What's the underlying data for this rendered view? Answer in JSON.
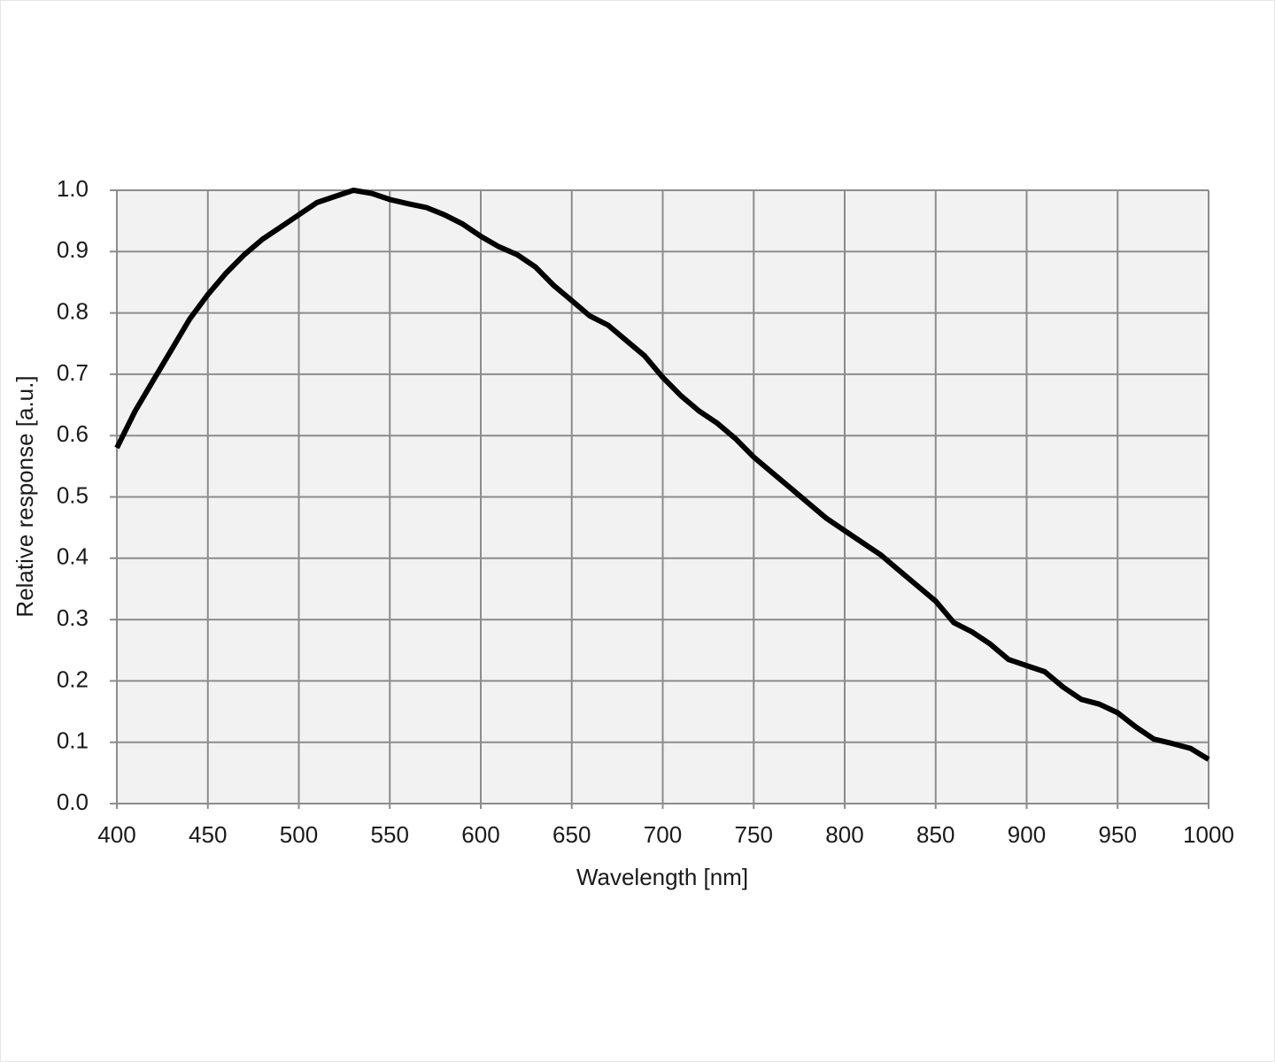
{
  "chart_data": {
    "type": "line",
    "xlabel": "Wavelength  [nm]",
    "ylabel": "Relative  response [a.u.]",
    "xlim": [
      400,
      1000
    ],
    "ylim": [
      0,
      1
    ],
    "xticks": [
      400,
      450,
      500,
      550,
      600,
      650,
      700,
      750,
      800,
      850,
      900,
      950,
      1000
    ],
    "yticks": [
      {
        "value": 0,
        "label": "0.0"
      },
      0.1,
      0.2,
      0.3,
      0.4,
      0.5,
      0.6,
      0.7,
      0.8,
      0.9,
      {
        "value": 1,
        "label": "1.0"
      }
    ],
    "grid": true,
    "x": [
      400,
      410,
      420,
      430,
      440,
      450,
      460,
      470,
      480,
      490,
      500,
      510,
      520,
      530,
      540,
      550,
      560,
      570,
      580,
      590,
      600,
      610,
      620,
      630,
      640,
      650,
      660,
      670,
      680,
      690,
      700,
      710,
      720,
      730,
      740,
      750,
      760,
      770,
      780,
      790,
      800,
      810,
      820,
      830,
      840,
      850,
      860,
      870,
      880,
      890,
      900,
      910,
      920,
      930,
      940,
      950,
      960,
      970,
      980,
      990,
      1000
    ],
    "series": [
      {
        "color": "#000000",
        "values": [
          0.58,
          0.64,
          0.69,
          0.74,
          0.79,
          0.83,
          0.865,
          0.895,
          0.92,
          0.94,
          0.96,
          0.98,
          0.99,
          1.0,
          0.995,
          0.985,
          0.978,
          0.972,
          0.96,
          0.945,
          0.925,
          0.908,
          0.895,
          0.875,
          0.845,
          0.82,
          0.795,
          0.78,
          0.755,
          0.73,
          0.695,
          0.665,
          0.64,
          0.62,
          0.595,
          0.565,
          0.54,
          0.515,
          0.49,
          0.465,
          0.445,
          0.425,
          0.405,
          0.38,
          0.355,
          0.33,
          0.295,
          0.28,
          0.26,
          0.235,
          0.225,
          0.215,
          0.19,
          0.17,
          0.162,
          0.148,
          0.125,
          0.105,
          0.098,
          0.09,
          0.072
        ]
      }
    ]
  }
}
